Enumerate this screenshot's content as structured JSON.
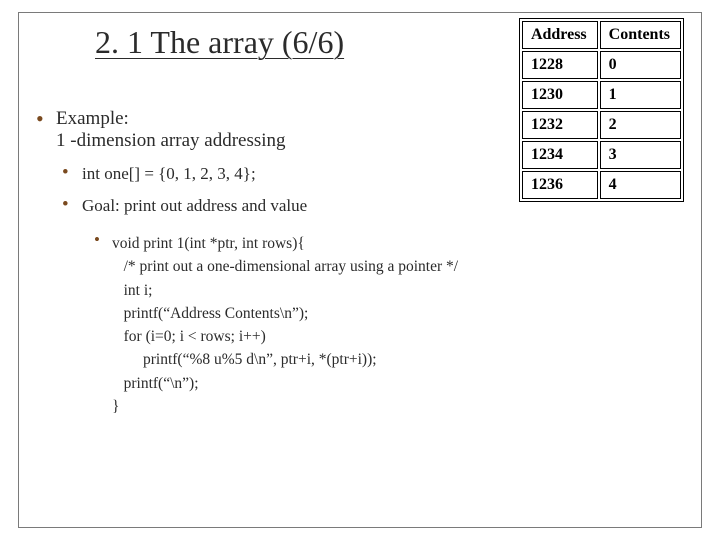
{
  "title": "2. 1 The array (6/6)",
  "bullets": {
    "example_label": "Example:",
    "example_desc": "1 -dimension array addressing",
    "decl": "int one[] = {0, 1, 2, 3, 4};",
    "goal": "Goal: print out address and value"
  },
  "code": {
    "l1": "void print 1(int *ptr, int rows){",
    "l2": "/* print out a one-dimensional array using a pointer */",
    "l3": "int i;",
    "l4": "printf(“Address Contents\\n”);",
    "l5": "for (i=0; i < rows; i++)",
    "l6": "        printf(“%8 u%5 d\\n”, ptr+i, *(ptr+i));",
    "l7": "printf(“\\n”);",
    "l8": "}"
  },
  "table": {
    "h1": "Address",
    "h2": "Contents",
    "rows": [
      {
        "a": "1228",
        "c": "0"
      },
      {
        "a": "1230",
        "c": "1"
      },
      {
        "a": "1232",
        "c": "2"
      },
      {
        "a": "1234",
        "c": "3"
      },
      {
        "a": "1236",
        "c": "4"
      }
    ]
  }
}
